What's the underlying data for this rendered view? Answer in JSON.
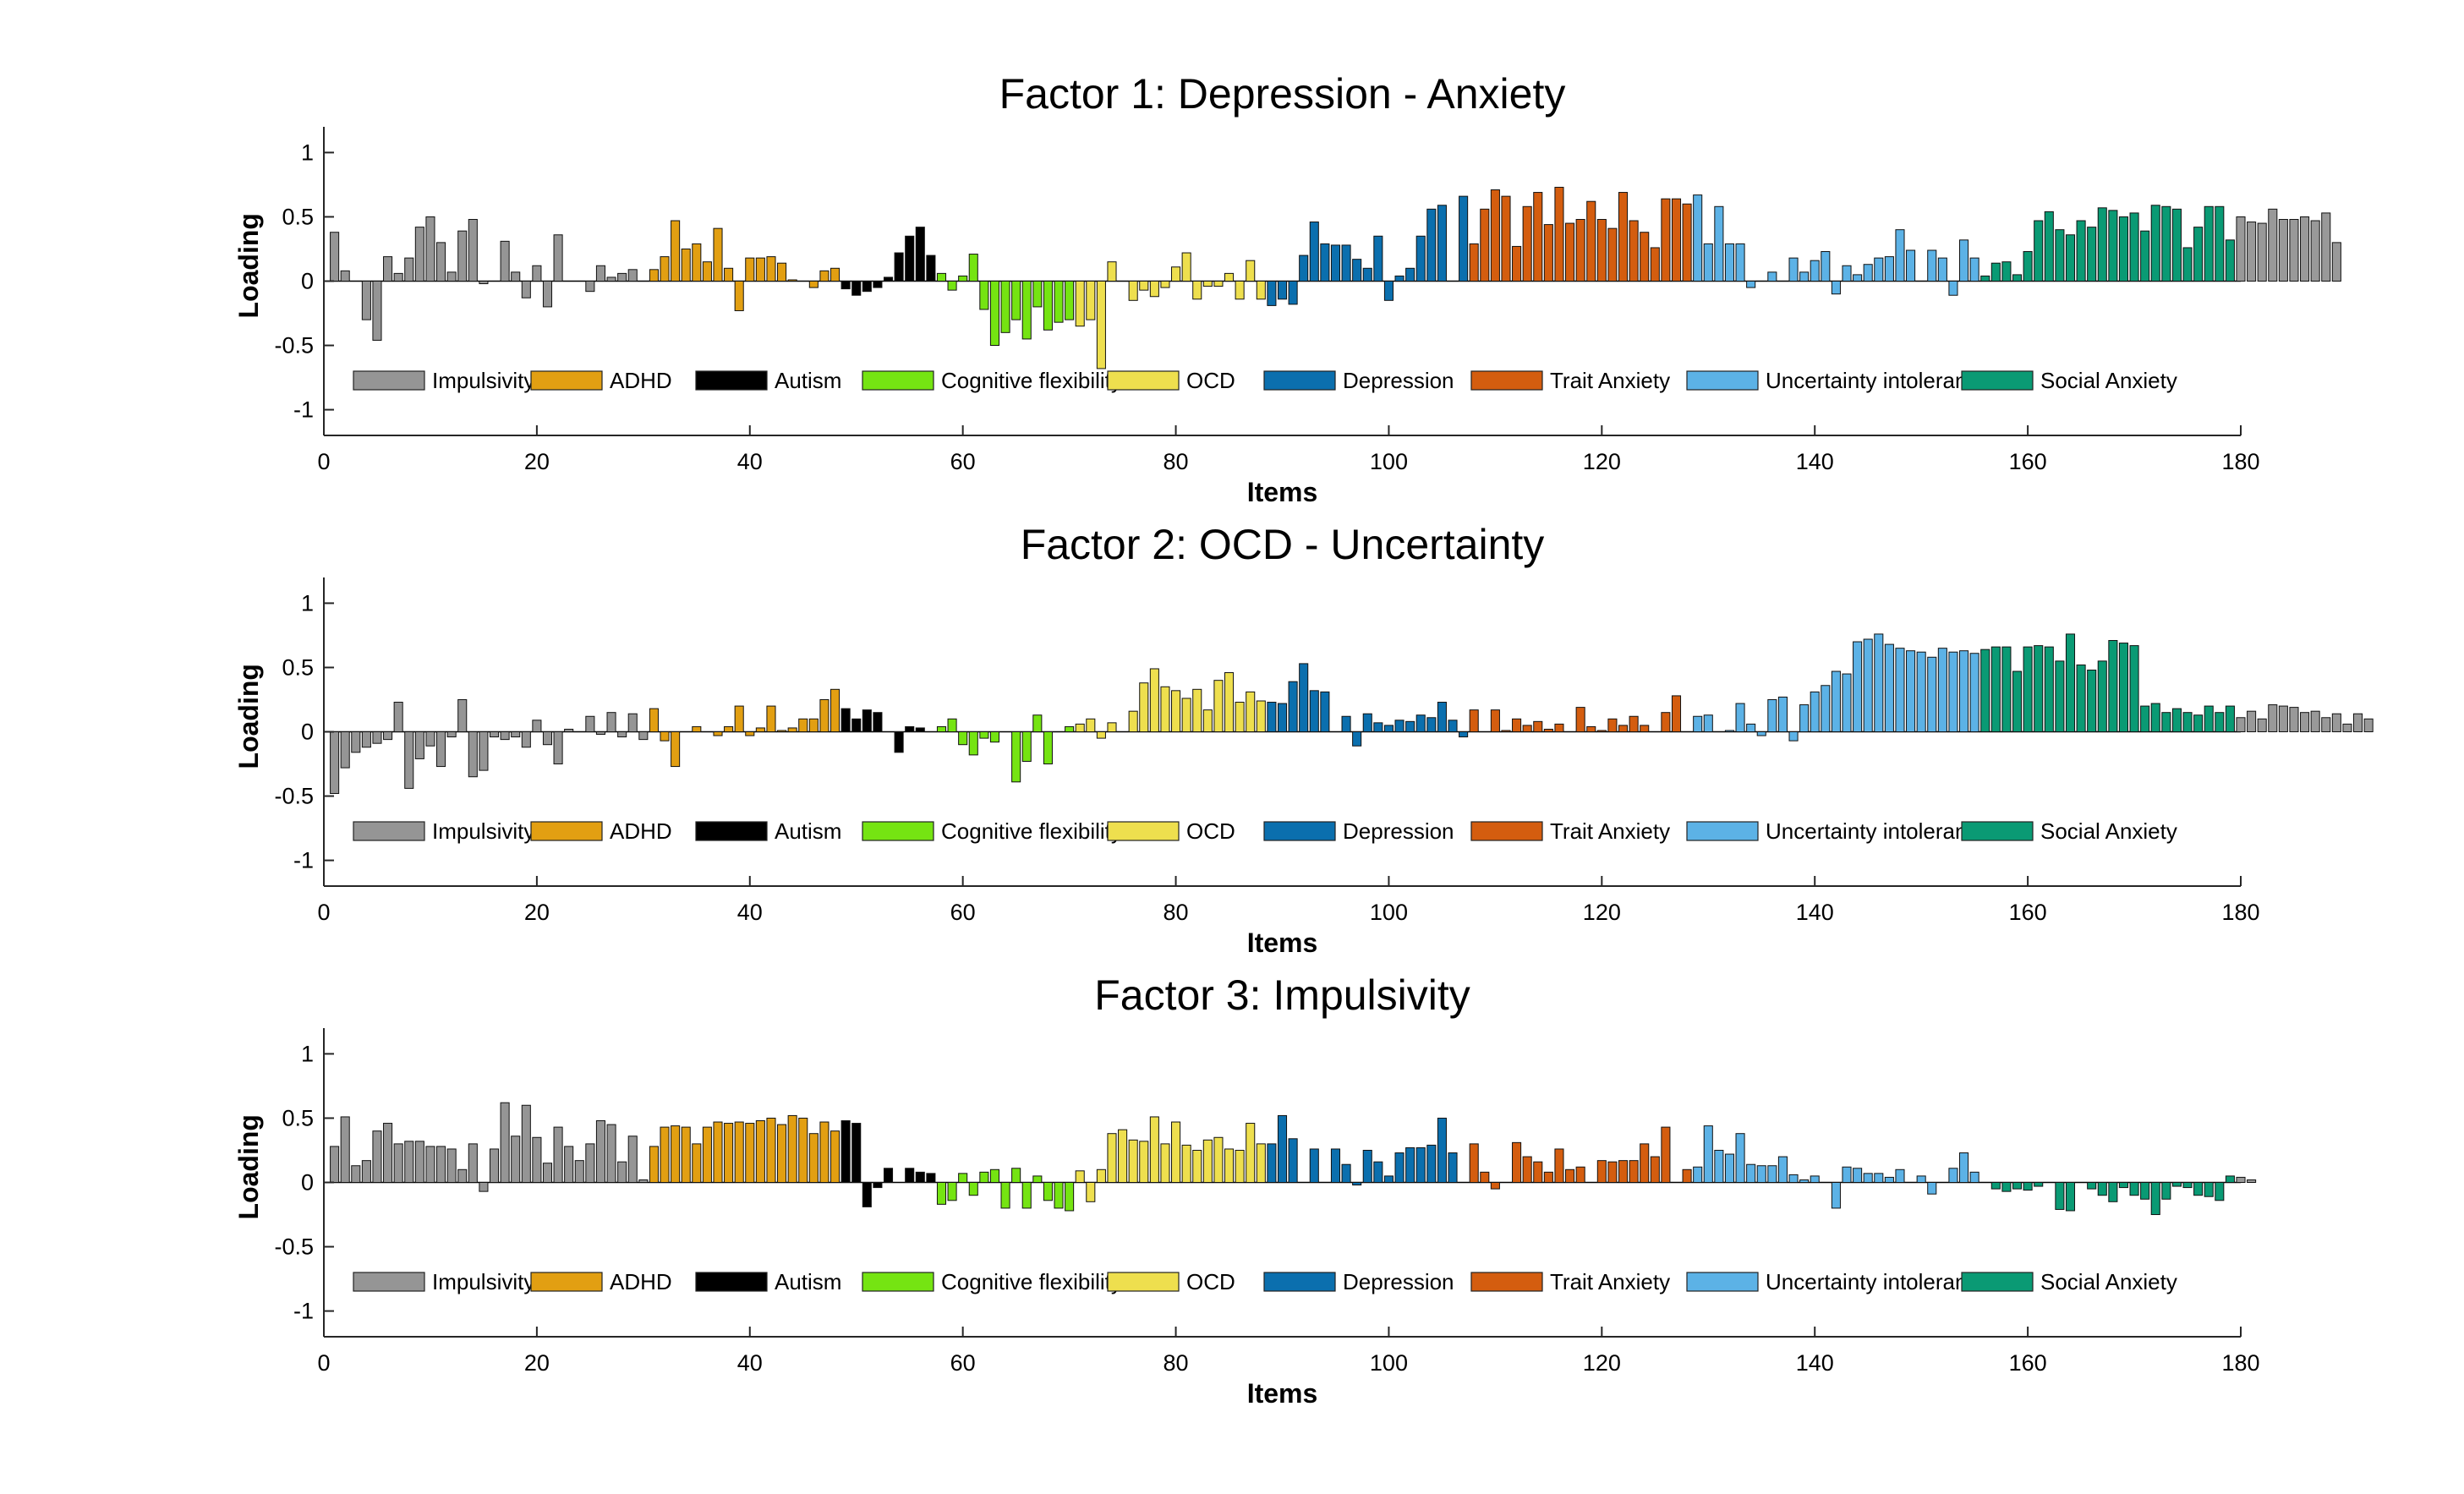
{
  "chart_data": [
    {
      "type": "bar",
      "title": "Factor 1: Depression - Anxiety",
      "xlabel": "Items",
      "ylabel": "Loading",
      "xlim": [
        0,
        180
      ],
      "ylim": [
        -1.2,
        1.2
      ],
      "xticks": [
        "0",
        "20",
        "40",
        "60",
        "80",
        "100",
        "120",
        "140",
        "160",
        "180"
      ],
      "yticks": [
        "1",
        "0.5",
        "0",
        "-0.5",
        "-1"
      ],
      "legend_position": "bottom-inside",
      "values": [
        0.38,
        0.08,
        0.0,
        -0.3,
        -0.46,
        0.19,
        0.06,
        0.18,
        0.42,
        0.5,
        0.3,
        0.07,
        0.39,
        0.48,
        -0.02,
        0.0,
        0.31,
        0.07,
        -0.13,
        0.12,
        -0.2,
        0.36,
        0.0,
        0.0,
        -0.08,
        0.12,
        0.03,
        0.06,
        0.09,
        0.0,
        0.09,
        0.19,
        0.47,
        0.25,
        0.29,
        0.15,
        0.41,
        0.1,
        -0.23,
        0.18,
        0.18,
        0.19,
        0.14,
        0.01,
        0.0,
        -0.05,
        0.08,
        0.1,
        -0.06,
        -0.11,
        -0.08,
        -0.05,
        0.03,
        0.22,
        0.35,
        0.42,
        0.2,
        0.06,
        -0.07,
        0.04,
        0.21,
        -0.22,
        -0.5,
        -0.4,
        -0.3,
        -0.45,
        -0.2,
        -0.38,
        -0.32,
        -0.3,
        -0.35,
        -0.3,
        -0.68,
        0.15,
        0.0,
        -0.15,
        -0.07,
        -0.12,
        -0.05,
        0.11,
        0.22,
        -0.14,
        -0.04,
        -0.04,
        0.06,
        -0.14,
        0.16,
        -0.14,
        -0.19,
        -0.14,
        -0.18,
        0.2,
        0.46,
        0.29,
        0.28,
        0.28,
        0.17,
        0.1,
        0.35,
        -0.15,
        0.04,
        0.1,
        0.35,
        0.56,
        0.59,
        0.0,
        0.66,
        0.29,
        0.56,
        0.71,
        0.66,
        0.27,
        0.58,
        0.69,
        0.44,
        0.73,
        0.45,
        0.48,
        0.62,
        0.48,
        0.41,
        0.69,
        0.47,
        0.38,
        0.26,
        0.64,
        0.64,
        0.6,
        0.67,
        0.29,
        0.58,
        0.29,
        0.29,
        -0.05,
        0.0,
        0.07,
        0.0,
        0.18,
        0.07,
        0.16,
        0.23,
        -0.1,
        0.12,
        0.05,
        0.13,
        0.18,
        0.19,
        0.4,
        0.24,
        0.0,
        0.24,
        0.18,
        -0.11,
        0.32,
        0.18,
        0.04,
        0.14,
        0.15,
        0.05,
        0.23,
        0.47,
        0.54,
        0.4,
        0.36,
        0.47,
        0.42,
        0.57,
        0.55,
        0.5,
        0.53,
        0.39,
        0.59,
        0.58,
        0.56,
        0.26,
        0.42,
        0.58,
        0.58,
        0.32,
        0.5,
        0.46,
        0.45,
        0.56,
        0.48,
        0.48,
        0.5,
        0.47,
        0.53,
        0.3
      ]
    },
    {
      "type": "bar",
      "title": "Factor 2: OCD - Uncertainty",
      "xlabel": "Items",
      "ylabel": "Loading",
      "xlim": [
        0,
        180
      ],
      "ylim": [
        -1.2,
        1.2
      ],
      "xticks": [
        "0",
        "20",
        "40",
        "60",
        "80",
        "100",
        "120",
        "140",
        "160",
        "180"
      ],
      "yticks": [
        "1",
        "0.5",
        "0",
        "-0.5",
        "-1"
      ],
      "legend_position": "bottom-inside",
      "values": [
        -0.48,
        -0.28,
        -0.16,
        -0.12,
        -0.09,
        -0.06,
        0.23,
        -0.44,
        -0.21,
        -0.11,
        -0.27,
        -0.04,
        0.25,
        -0.35,
        -0.3,
        -0.04,
        -0.06,
        -0.04,
        -0.12,
        0.09,
        -0.1,
        -0.25,
        0.02,
        0.0,
        0.12,
        -0.02,
        0.15,
        -0.04,
        0.14,
        -0.06,
        0.18,
        -0.07,
        -0.27,
        0.0,
        0.04,
        0.0,
        -0.03,
        0.04,
        0.2,
        -0.03,
        0.03,
        0.2,
        0.01,
        0.03,
        0.1,
        0.1,
        0.25,
        0.33,
        0.18,
        0.1,
        0.17,
        0.15,
        0.0,
        -0.16,
        0.04,
        0.03,
        0.0,
        0.04,
        0.1,
        -0.1,
        -0.18,
        -0.05,
        -0.08,
        0.0,
        -0.39,
        -0.23,
        0.13,
        -0.25,
        0.0,
        0.04,
        0.06,
        0.1,
        -0.05,
        0.07,
        0.0,
        0.16,
        0.38,
        0.49,
        0.35,
        0.32,
        0.26,
        0.33,
        0.17,
        0.4,
        0.46,
        0.23,
        0.31,
        0.24,
        0.23,
        0.22,
        0.39,
        0.53,
        0.32,
        0.31,
        0.0,
        0.12,
        -0.11,
        0.14,
        0.07,
        0.05,
        0.09,
        0.08,
        0.13,
        0.11,
        0.23,
        0.09,
        -0.04,
        0.17,
        0.0,
        0.17,
        0.01,
        0.1,
        0.05,
        0.08,
        0.02,
        0.06,
        0.0,
        0.19,
        0.04,
        0.01,
        0.1,
        0.05,
        0.12,
        0.05,
        0.0,
        0.15,
        0.28,
        0.0,
        0.12,
        0.13,
        0.0,
        0.01,
        0.22,
        0.06,
        -0.03,
        0.25,
        0.27,
        -0.07,
        0.21,
        0.31,
        0.36,
        0.47,
        0.45,
        0.7,
        0.72,
        0.76,
        0.68,
        0.65,
        0.63,
        0.62,
        0.58,
        0.65,
        0.62,
        0.63,
        0.61,
        0.64,
        0.66,
        0.66,
        0.47,
        0.66,
        0.67,
        0.66,
        0.55,
        0.76,
        0.52,
        0.48,
        0.55,
        0.71,
        0.69,
        0.67,
        0.2,
        0.22,
        0.15,
        0.18,
        0.15,
        0.13,
        0.2,
        0.15,
        0.2,
        0.11,
        0.16,
        0.1,
        0.21,
        0.2,
        0.19,
        0.15,
        0.16,
        0.11,
        0.14,
        0.06,
        0.14,
        0.1
      ]
    },
    {
      "type": "bar",
      "title": "Factor 3: Impulsivity",
      "xlabel": "Items",
      "ylabel": "Loading",
      "xlim": [
        0,
        180
      ],
      "ylim": [
        -1.2,
        1.2
      ],
      "xticks": [
        "0",
        "20",
        "40",
        "60",
        "80",
        "100",
        "120",
        "140",
        "160",
        "180"
      ],
      "yticks": [
        "1",
        "0.5",
        "0",
        "-0.5",
        "-1"
      ],
      "legend_position": "bottom-inside",
      "values": [
        0.28,
        0.51,
        0.13,
        0.17,
        0.4,
        0.46,
        0.3,
        0.32,
        0.32,
        0.28,
        0.28,
        0.26,
        0.1,
        0.3,
        -0.07,
        0.26,
        0.62,
        0.36,
        0.6,
        0.35,
        0.15,
        0.43,
        0.28,
        0.17,
        0.3,
        0.48,
        0.45,
        0.16,
        0.36,
        0.02,
        0.28,
        0.43,
        0.44,
        0.43,
        0.3,
        0.43,
        0.47,
        0.46,
        0.47,
        0.46,
        0.48,
        0.5,
        0.45,
        0.52,
        0.5,
        0.38,
        0.47,
        0.4,
        0.48,
        0.46,
        -0.19,
        -0.04,
        0.11,
        0.0,
        0.11,
        0.08,
        0.07,
        -0.17,
        -0.14,
        0.07,
        -0.1,
        0.08,
        0.1,
        -0.2,
        0.11,
        -0.2,
        0.05,
        -0.14,
        -0.2,
        -0.22,
        0.09,
        -0.15,
        0.1,
        0.38,
        0.41,
        0.33,
        0.32,
        0.51,
        0.3,
        0.47,
        0.29,
        0.25,
        0.33,
        0.35,
        0.26,
        0.25,
        0.46,
        0.3,
        0.3,
        0.52,
        0.34,
        0.0,
        0.26,
        0.0,
        0.26,
        0.14,
        -0.02,
        0.25,
        0.16,
        0.05,
        0.23,
        0.27,
        0.27,
        0.29,
        0.5,
        0.23,
        0.0,
        0.3,
        0.08,
        -0.05,
        0.0,
        0.31,
        0.2,
        0.16,
        0.08,
        0.26,
        0.1,
        0.12,
        0.0,
        0.17,
        0.16,
        0.17,
        0.17,
        0.3,
        0.2,
        0.43,
        0.0,
        0.1,
        0.12,
        0.44,
        0.25,
        0.22,
        0.38,
        0.14,
        0.13,
        0.13,
        0.2,
        0.06,
        0.02,
        0.05,
        0.0,
        -0.2,
        0.12,
        0.11,
        0.07,
        0.07,
        0.04,
        0.1,
        0.0,
        0.05,
        -0.09,
        0.0,
        0.11,
        0.23,
        0.08,
        0.0,
        -0.05,
        -0.07,
        -0.05,
        -0.06,
        -0.03,
        0.0,
        -0.21,
        -0.22,
        0.0,
        -0.05,
        -0.1,
        -0.15,
        -0.04,
        -0.1,
        -0.13,
        -0.25,
        -0.13,
        -0.03,
        -0.04,
        -0.1,
        -0.11,
        -0.14,
        0.05,
        0.04,
        0.02
      ]
    }
  ],
  "categories": [
    {
      "name": "Impulsivity",
      "color": "#959595"
    },
    {
      "name": "ADHD",
      "color": "#e29f12"
    },
    {
      "name": "Autism",
      "color": "#000000"
    },
    {
      "name": "Cognitive flexibility",
      "color": "#75e412"
    },
    {
      "name": "OCD",
      "color": "#eedf4e"
    },
    {
      "name": "Depression",
      "color": "#0b6fae"
    },
    {
      "name": "Trait Anxiety",
      "color": "#d45d0f"
    },
    {
      "name": "Uncertainty intolerance",
      "color": "#5cb2e6"
    },
    {
      "name": "Social Anxiety",
      "color": "#0a9a74"
    }
  ],
  "category_ranges": [
    [
      1,
      30
    ],
    [
      31,
      48
    ],
    [
      49,
      57
    ],
    [
      58,
      70
    ],
    [
      71,
      88
    ],
    [
      89,
      107
    ],
    [
      108,
      128
    ],
    [
      129,
      155
    ],
    [
      156,
      179
    ]
  ]
}
